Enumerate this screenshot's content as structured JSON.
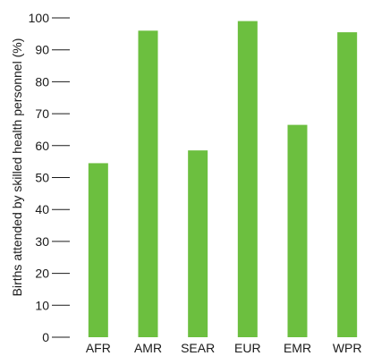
{
  "chart_data": {
    "type": "bar",
    "categories": [
      "AFR",
      "AMR",
      "SEAR",
      "EUR",
      "EMR",
      "WPR"
    ],
    "values": [
      54.5,
      96,
      58.5,
      99,
      66.5,
      95.5
    ],
    "title": "",
    "xlabel": "",
    "ylabel": "Births attended by skilled health personnel (%)",
    "ylim": [
      0,
      100
    ],
    "yticks": [
      0,
      10,
      20,
      30,
      40,
      50,
      60,
      70,
      80,
      90,
      100
    ],
    "grid": false,
    "legend": "none",
    "bar_color": "#6cbf3f"
  }
}
